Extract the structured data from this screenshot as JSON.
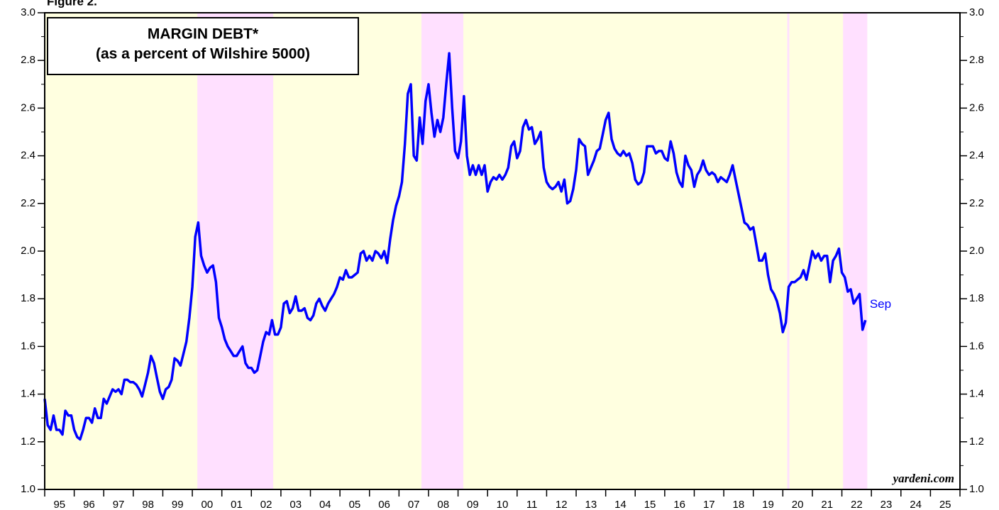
{
  "chart_data": {
    "type": "line",
    "figure_label": "Figure 2.",
    "title": [
      "MARGIN DEBT*",
      "(as a percent of Wilshire 5000)"
    ],
    "annotation": "Sep",
    "source": "yardeni.com",
    "xlim": [
      1995,
      2026
    ],
    "ylim": [
      1.0,
      3.0
    ],
    "yticks": [
      {
        "value": 1.0,
        "label": "1.0"
      },
      1.2,
      1.4,
      1.6,
      1.8,
      {
        "value": 2.0,
        "label": "2.0"
      },
      2.2,
      2.4,
      2.6,
      2.8,
      {
        "value": 3.0,
        "label": "3.0"
      }
    ],
    "yticks_minor": [
      1.1,
      1.3,
      1.5,
      1.7,
      1.9,
      2.1,
      2.3,
      2.5,
      2.7,
      2.9
    ],
    "xticks": [
      {
        "value": 1995,
        "label": "95"
      },
      {
        "value": 1996,
        "label": "96"
      },
      {
        "value": 1997,
        "label": "97"
      },
      {
        "value": 1998,
        "label": "98"
      },
      {
        "value": 1999,
        "label": "99"
      },
      {
        "value": 2000,
        "label": "00"
      },
      {
        "value": 2001,
        "label": "01"
      },
      {
        "value": 2002,
        "label": "02"
      },
      {
        "value": 2003,
        "label": "03"
      },
      {
        "value": 2004,
        "label": "04"
      },
      {
        "value": 2005,
        "label": "05"
      },
      {
        "value": 2006,
        "label": "06"
      },
      {
        "value": 2007,
        "label": "07"
      },
      {
        "value": 2008,
        "label": "08"
      },
      {
        "value": 2009,
        "label": "09"
      },
      {
        "value": 2010,
        "label": "10"
      },
      {
        "value": 2011,
        "label": "11"
      },
      {
        "value": 2012,
        "label": "12"
      },
      {
        "value": 2013,
        "label": "13"
      },
      {
        "value": 2014,
        "label": "14"
      },
      {
        "value": 2015,
        "label": "15"
      },
      {
        "value": 2016,
        "label": "16"
      },
      {
        "value": 2017,
        "label": "17"
      },
      {
        "value": 2018,
        "label": "18"
      },
      {
        "value": 2019,
        "label": "19"
      },
      {
        "value": 2020,
        "label": "20"
      },
      {
        "value": 2021,
        "label": "21"
      },
      {
        "value": 2022,
        "label": "22"
      },
      {
        "value": 2023,
        "label": "23"
      },
      {
        "value": 2024,
        "label": "24"
      },
      {
        "value": 2025,
        "label": "25"
      }
    ],
    "background_periods": {
      "color": "#ffffe0",
      "spans": [
        [
          1995,
          2022.86
        ]
      ]
    },
    "shaded_periods": {
      "color": "#ffe0ff",
      "spans": [
        [
          2000.17,
          2002.74
        ],
        [
          2007.76,
          2009.18
        ],
        [
          2020.15,
          2020.22
        ],
        [
          2022.04,
          2022.86
        ]
      ]
    },
    "x": [
      1995,
      1995.1,
      1995.2,
      1995.3,
      1995.4,
      1995.5,
      1995.6,
      1995.7,
      1995.8,
      1995.9,
      1996,
      1996.1,
      1996.2,
      1996.3,
      1996.4,
      1996.5,
      1996.6,
      1996.7,
      1996.8,
      1996.9,
      1997,
      1997.1,
      1997.2,
      1997.3,
      1997.4,
      1997.5,
      1997.6,
      1997.7,
      1997.8,
      1997.9,
      1998,
      1998.1,
      1998.2,
      1998.3,
      1998.4,
      1998.5,
      1998.6,
      1998.7,
      1998.8,
      1998.9,
      1999,
      1999.1,
      1999.2,
      1999.3,
      1999.4,
      1999.5,
      1999.6,
      1999.7,
      1999.8,
      1999.9,
      2000,
      2000.1,
      2000.2,
      2000.3,
      2000.4,
      2000.5,
      2000.6,
      2000.7,
      2000.8,
      2000.9,
      2001,
      2001.1,
      2001.2,
      2001.3,
      2001.4,
      2001.5,
      2001.6,
      2001.7,
      2001.8,
      2001.9,
      2002,
      2002.1,
      2002.2,
      2002.3,
      2002.4,
      2002.5,
      2002.6,
      2002.7,
      2002.8,
      2002.9,
      2003,
      2003.1,
      2003.2,
      2003.3,
      2003.4,
      2003.5,
      2003.6,
      2003.7,
      2003.8,
      2003.9,
      2004,
      2004.1,
      2004.2,
      2004.3,
      2004.4,
      2004.5,
      2004.6,
      2004.7,
      2004.8,
      2004.9,
      2005,
      2005.1,
      2005.2,
      2005.3,
      2005.4,
      2005.5,
      2005.6,
      2005.7,
      2005.8,
      2005.9,
      2006,
      2006.1,
      2006.2,
      2006.3,
      2006.4,
      2006.5,
      2006.6,
      2006.7,
      2006.8,
      2006.9,
      2007,
      2007.1,
      2007.2,
      2007.3,
      2007.4,
      2007.5,
      2007.6,
      2007.7,
      2007.8,
      2007.9,
      2008,
      2008.1,
      2008.2,
      2008.3,
      2008.4,
      2008.5,
      2008.6,
      2008.7,
      2008.8,
      2008.9,
      2009,
      2009.1,
      2009.2,
      2009.3,
      2009.4,
      2009.5,
      2009.6,
      2009.7,
      2009.8,
      2009.9,
      2010,
      2010.1,
      2010.2,
      2010.3,
      2010.4,
      2010.5,
      2010.6,
      2010.7,
      2010.8,
      2010.9,
      2011,
      2011.1,
      2011.2,
      2011.3,
      2011.4,
      2011.5,
      2011.6,
      2011.7,
      2011.8,
      2011.9,
      2012,
      2012.1,
      2012.2,
      2012.3,
      2012.4,
      2012.5,
      2012.6,
      2012.7,
      2012.8,
      2012.9,
      2013,
      2013.1,
      2013.2,
      2013.3,
      2013.4,
      2013.5,
      2013.6,
      2013.7,
      2013.8,
      2013.9,
      2014,
      2014.1,
      2014.2,
      2014.3,
      2014.4,
      2014.5,
      2014.6,
      2014.7,
      2014.8,
      2014.9,
      2015,
      2015.1,
      2015.2,
      2015.3,
      2015.4,
      2015.5,
      2015.6,
      2015.7,
      2015.8,
      2015.9,
      2016,
      2016.1,
      2016.2,
      2016.3,
      2016.4,
      2016.5,
      2016.6,
      2016.7,
      2016.8,
      2016.9,
      2017,
      2017.1,
      2017.2,
      2017.3,
      2017.4,
      2017.5,
      2017.6,
      2017.7,
      2017.8,
      2017.9,
      2018,
      2018.1,
      2018.2,
      2018.3,
      2018.4,
      2018.5,
      2018.6,
      2018.7,
      2018.8,
      2018.9,
      2019,
      2019.1,
      2019.2,
      2019.3,
      2019.4,
      2019.5,
      2019.6,
      2019.7,
      2019.8,
      2019.9,
      2020,
      2020.1,
      2020.2,
      2020.3,
      2020.4,
      2020.5,
      2020.6,
      2020.7,
      2020.8,
      2020.9,
      2021,
      2021.1,
      2021.2,
      2021.3,
      2021.4,
      2021.5,
      2021.6,
      2021.7,
      2021.8,
      2021.9,
      2022,
      2022.1,
      2022.2,
      2022.3,
      2022.4,
      2022.5,
      2022.6,
      2022.7,
      2022.8
    ],
    "series": [
      {
        "color": "#0000ff",
        "values": [
          1.38,
          1.27,
          1.25,
          1.31,
          1.25,
          1.25,
          1.23,
          1.33,
          1.31,
          1.31,
          1.25,
          1.22,
          1.21,
          1.25,
          1.3,
          1.3,
          1.28,
          1.34,
          1.3,
          1.3,
          1.38,
          1.36,
          1.39,
          1.42,
          1.41,
          1.42,
          1.4,
          1.46,
          1.46,
          1.45,
          1.45,
          1.44,
          1.42,
          1.39,
          1.44,
          1.49,
          1.56,
          1.53,
          1.47,
          1.41,
          1.38,
          1.42,
          1.43,
          1.46,
          1.55,
          1.54,
          1.52,
          1.57,
          1.62,
          1.72,
          1.85,
          2.06,
          2.12,
          1.98,
          1.94,
          1.91,
          1.93,
          1.94,
          1.87,
          1.72,
          1.68,
          1.63,
          1.6,
          1.58,
          1.56,
          1.56,
          1.58,
          1.6,
          1.53,
          1.51,
          1.51,
          1.49,
          1.5,
          1.56,
          1.62,
          1.66,
          1.65,
          1.71,
          1.65,
          1.65,
          1.68,
          1.78,
          1.79,
          1.74,
          1.76,
          1.81,
          1.75,
          1.75,
          1.76,
          1.72,
          1.71,
          1.73,
          1.78,
          1.8,
          1.77,
          1.75,
          1.78,
          1.8,
          1.82,
          1.85,
          1.89,
          1.88,
          1.92,
          1.89,
          1.89,
          1.9,
          1.91,
          1.99,
          2.0,
          1.96,
          1.98,
          1.96,
          2.0,
          1.99,
          1.97,
          2.0,
          1.95,
          2.05,
          2.13,
          2.19,
          2.23,
          2.29,
          2.45,
          2.66,
          2.7,
          2.4,
          2.38,
          2.56,
          2.45,
          2.63,
          2.7,
          2.58,
          2.48,
          2.55,
          2.5,
          2.56,
          2.7,
          2.83,
          2.6,
          2.42,
          2.39,
          2.46,
          2.65,
          2.4,
          2.32,
          2.36,
          2.32,
          2.36,
          2.32,
          2.36,
          2.25,
          2.29,
          2.31,
          2.3,
          2.32,
          2.3,
          2.32,
          2.35,
          2.44,
          2.46,
          2.39,
          2.42,
          2.52,
          2.55,
          2.51,
          2.52,
          2.45,
          2.47,
          2.5,
          2.35,
          2.29,
          2.27,
          2.26,
          2.27,
          2.29,
          2.25,
          2.3,
          2.2,
          2.21,
          2.26,
          2.34,
          2.47,
          2.45,
          2.44,
          2.32,
          2.35,
          2.38,
          2.42,
          2.43,
          2.49,
          2.55,
          2.58,
          2.47,
          2.43,
          2.41,
          2.4,
          2.42,
          2.4,
          2.41,
          2.37,
          2.3,
          2.28,
          2.29,
          2.33,
          2.44,
          2.44,
          2.44,
          2.41,
          2.42,
          2.42,
          2.39,
          2.38,
          2.46,
          2.41,
          2.33,
          2.29,
          2.27,
          2.4,
          2.36,
          2.34,
          2.27,
          2.32,
          2.34,
          2.38,
          2.34,
          2.32,
          2.33,
          2.32,
          2.29,
          2.31,
          2.3,
          2.29,
          2.32,
          2.36,
          2.3,
          2.24,
          2.18,
          2.12,
          2.11,
          2.09,
          2.1,
          2.03,
          1.96,
          1.96,
          1.99,
          1.9,
          1.84,
          1.82,
          1.79,
          1.74,
          1.66,
          1.7,
          1.85,
          1.87,
          1.87,
          1.88,
          1.89,
          1.92,
          1.88,
          1.94,
          2.0,
          1.97,
          1.99,
          1.96,
          1.98,
          1.98,
          1.87,
          1.96,
          1.98,
          2.01,
          1.91,
          1.89,
          1.83,
          1.84,
          1.78,
          1.8,
          1.82,
          1.67,
          1.71
        ]
      }
    ]
  }
}
